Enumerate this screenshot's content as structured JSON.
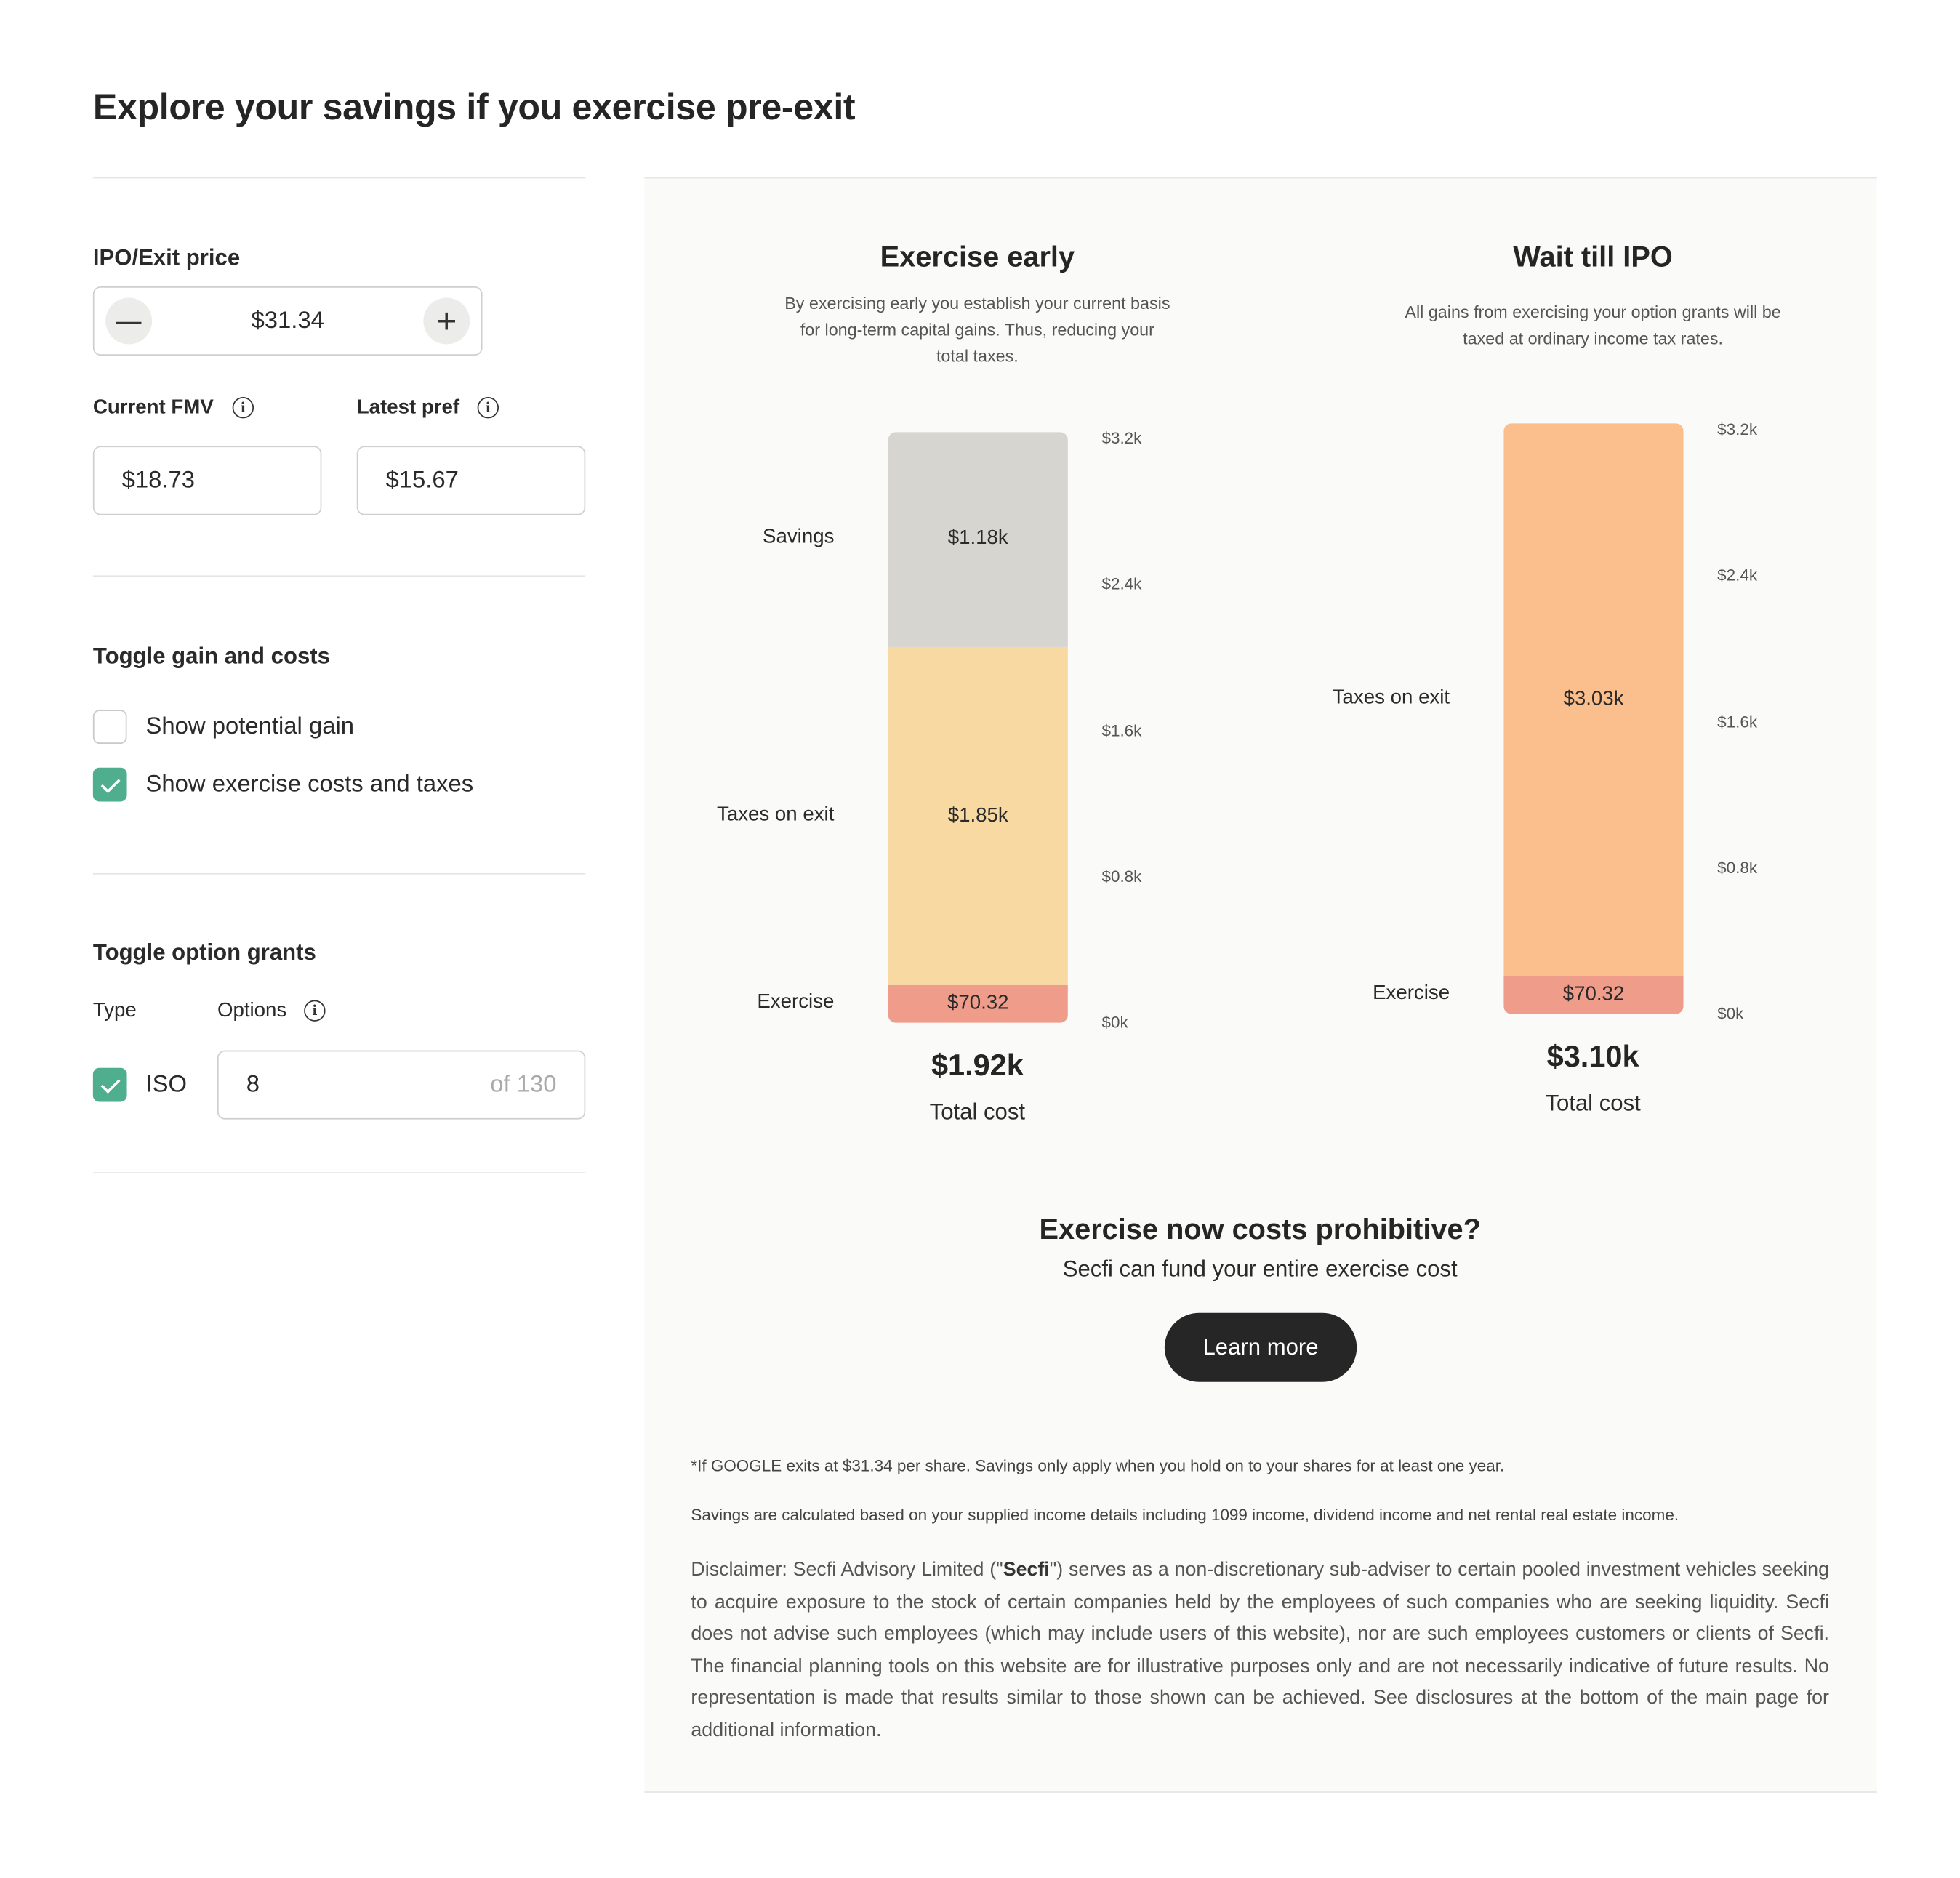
{
  "page_title": "Explore your savings if you exercise pre-exit",
  "controls": {
    "ipo_price_label": "IPO/Exit price",
    "ipo_price_value": "$31.34",
    "decrement_symbol": "—",
    "increment_symbol": "+",
    "current_fmv_label": "Current FMV",
    "current_fmv_value": "$18.73",
    "latest_pref_label": "Latest pref",
    "latest_pref_value": "$15.67",
    "info_symbol": "i"
  },
  "toggle_gain": {
    "title": "Toggle gain and costs",
    "show_potential_gain": {
      "label": "Show potential gain",
      "checked": false
    },
    "show_costs": {
      "label": "Show exercise costs and taxes",
      "checked": true
    }
  },
  "toggle_grants": {
    "title": "Toggle option grants",
    "type_header": "Type",
    "options_header": "Options",
    "grant": {
      "type": "ISO",
      "checked": true,
      "options_value": "8",
      "of_total": "of 130"
    }
  },
  "exercise_early": {
    "title": "Exercise early",
    "subtitle": "By exercising early you establish your current basis for long-term capital gains. Thus, reducing your total taxes.",
    "total_value": "$1.92k",
    "total_label": "Total cost"
  },
  "wait_ipo": {
    "title": "Wait till IPO",
    "subtitle": "All gains from exercising your option grants will be taxed at ordinary income tax rates.",
    "total_value": "$3.10k",
    "total_label": "Total cost"
  },
  "chart_data": [
    {
      "type": "bar",
      "stacked": true,
      "title": "Exercise early",
      "categories": [
        "Exercise early"
      ],
      "series": [
        {
          "name": "Exercise",
          "values": [
            70.32
          ],
          "label": "$70.32",
          "color": "#f09c8a"
        },
        {
          "name": "Taxes on exit",
          "values": [
            1850
          ],
          "label": "$1.85k",
          "color": "#f8d9a1"
        },
        {
          "name": "Savings",
          "values": [
            1180
          ],
          "label": "$1.18k",
          "color": "#d6d5d0"
        }
      ],
      "yticks": [
        "$0k",
        "$0.8k",
        "$1.6k",
        "$2.4k",
        "$3.2k"
      ],
      "ylim": [
        0,
        3200
      ]
    },
    {
      "type": "bar",
      "stacked": true,
      "title": "Wait till IPO",
      "categories": [
        "Wait till IPO"
      ],
      "series": [
        {
          "name": "Exercise",
          "values": [
            70.32
          ],
          "label": "$70.32",
          "color": "#f09c8a"
        },
        {
          "name": "Taxes on exit",
          "values": [
            3030
          ],
          "label": "$3.03k",
          "color": "#fbbf8e"
        }
      ],
      "yticks": [
        "$0k",
        "$0.8k",
        "$1.6k",
        "$2.4k",
        "$3.2k"
      ],
      "ylim": [
        0,
        3200
      ]
    }
  ],
  "cta": {
    "title": "Exercise now costs prohibitive?",
    "subtitle": "Secfi can fund your entire exercise cost",
    "button": "Learn more"
  },
  "footnotes": {
    "note1": "*If GOOGLE exits at $31.34 per share. Savings only apply when you hold on to your shares for at least one year.",
    "note2": "Savings are calculated based on your supplied income details including 1099 income, dividend income and net rental real estate income.",
    "disclaimer_prefix": "Disclaimer: Secfi Advisory Limited (\"",
    "disclaimer_bold": "Secfi",
    "disclaimer_rest": "\") serves as a non-discretionary sub-adviser to certain pooled investment vehicles seeking to acquire exposure to the stock of certain companies held by the employees of such companies who are seeking liquidity. Secfi does not advise such employees (which may include users of this website), nor are such employees customers or clients of Secfi. The financial planning tools on this website are for illustrative purposes only and are not necessarily indicative of future results. No representation is made that results similar to those shown can be achieved. See disclosures at the bottom of the main page for additional information."
  }
}
